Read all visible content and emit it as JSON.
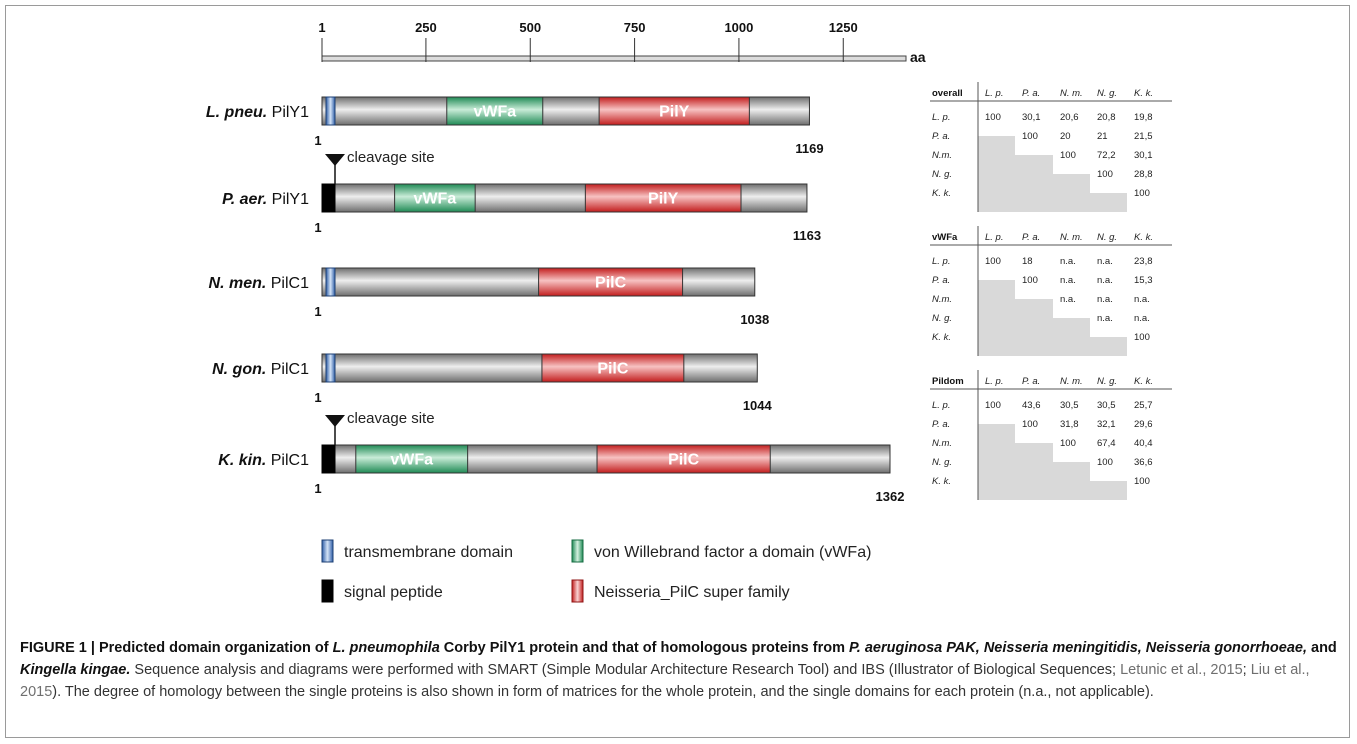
{
  "scale": {
    "ticks": [
      1,
      250,
      500,
      750,
      1000,
      1250
    ],
    "tick_labels": [
      "1",
      "250",
      "500",
      "750",
      "1000",
      "1250"
    ],
    "max": 1362,
    "unit": "aa"
  },
  "proteins": [
    {
      "id": "lpne",
      "species": "L. pneu.",
      "name": "PilY1",
      "length": 1169,
      "end_label": "1169",
      "start_label": "1",
      "n_term": "tm",
      "cleavage": false,
      "domains": [
        {
          "type": "vwfa",
          "label": "vWFa",
          "start": 300,
          "end": 530
        },
        {
          "type": "pilc",
          "label": "PilY",
          "start": 665,
          "end": 1025
        }
      ]
    },
    {
      "id": "paer",
      "species": "P. aer.",
      "name": "PilY1",
      "length": 1163,
      "end_label": "1163",
      "start_label": "1",
      "n_term": "sp",
      "cleavage": true,
      "cleavage_label": "cleavage site",
      "domains": [
        {
          "type": "vwfa",
          "label": "vWFa",
          "start": 175,
          "end": 368
        },
        {
          "type": "pilc",
          "label": "PilY",
          "start": 632,
          "end": 1005
        }
      ]
    },
    {
      "id": "nmen",
      "species": "N. men.",
      "name": "PilC1",
      "length": 1038,
      "end_label": "1038",
      "start_label": "1",
      "n_term": "tm",
      "cleavage": false,
      "domains": [
        {
          "type": "pilc",
          "label": "PilC",
          "start": 520,
          "end": 865
        }
      ]
    },
    {
      "id": "ngon",
      "species": "N. gon.",
      "name": "PilC1",
      "length": 1044,
      "end_label": "1044",
      "start_label": "1",
      "n_term": "tm",
      "cleavage": false,
      "domains": [
        {
          "type": "pilc",
          "label": "PilC",
          "start": 528,
          "end": 868
        }
      ]
    },
    {
      "id": "kkin",
      "species": "K. kin.",
      "name": "PilC1",
      "length": 1362,
      "end_label": "1362",
      "start_label": "1",
      "n_term": "sp",
      "cleavage": true,
      "cleavage_label": "cleavage site",
      "domains": [
        {
          "type": "vwfa",
          "label": "vWFa",
          "start": 82,
          "end": 350
        },
        {
          "type": "pilc",
          "label": "PilC",
          "start": 660,
          "end": 1075
        }
      ]
    }
  ],
  "legend": [
    {
      "type": "tm",
      "label": "transmembrane domain"
    },
    {
      "type": "vwfa",
      "label": "von Willebrand factor a domain (vWFa)"
    },
    {
      "type": "sp",
      "label": "signal peptide"
    },
    {
      "type": "pilc",
      "label": "Neisseria_PilC super family"
    }
  ],
  "matrix_headers": [
    "L. p.",
    "P. a.",
    "N. m.",
    "N. g.",
    "K. k."
  ],
  "row_labels": [
    "L. p.",
    "P. a.",
    "N.m.",
    "N. g.",
    "K. k."
  ],
  "matrices": [
    {
      "title": "overall",
      "rows": [
        [
          "100",
          "30,1",
          "20,6",
          "20,8",
          "19,8"
        ],
        [
          "100",
          "20",
          "21",
          "21,5"
        ],
        [
          "100",
          "72,2",
          "30,1"
        ],
        [
          "100",
          "28,8"
        ],
        [
          "100"
        ]
      ]
    },
    {
      "title": "vWFa",
      "rows": [
        [
          "100",
          "18",
          "n.a.",
          "n.a.",
          "23,8"
        ],
        [
          "100",
          "n.a.",
          "n.a.",
          "15,3"
        ],
        [
          "n.a.",
          "n.a.",
          "n.a."
        ],
        [
          "n.a.",
          "n.a."
        ],
        [
          "100"
        ]
      ]
    },
    {
      "title": "Pildom",
      "rows": [
        [
          "100",
          "43,6",
          "30,5",
          "30,5",
          "25,7"
        ],
        [
          "100",
          "31,8",
          "32,1",
          "29,6"
        ],
        [
          "100",
          "67,4",
          "40,4"
        ],
        [
          "100",
          "36,6"
        ],
        [
          "100"
        ]
      ]
    }
  ],
  "colors": {
    "gray_mid": "#d0d0d0",
    "gray_dark": "#6e6e6e",
    "vwfa_mid": "#9fd7b8",
    "vwfa_dark": "#1f8a55",
    "pilc_mid": "#f29a9a",
    "pilc_dark": "#c21d1d",
    "tm_mid": "#a9c6ea",
    "tm_dark": "#2e5ea8",
    "sp": "#000000",
    "matrix_fill": "#d9d9d9"
  },
  "caption": {
    "lead_1": "FIGURE 1 | Predicted domain organization of ",
    "lead_2": "L. pneumophila",
    "lead_3": " Corby PilY1 protein and that of homologous proteins from ",
    "lead_4": "P. aeruginosa PAK, Neisseria meningitidis, Neisseria gonorrhoeae,",
    "lead_5": " and ",
    "lead_6": "Kingella kingae.",
    "body_1": " Sequence analysis and diagrams were performed with SMART (Simple Modular Architecture Research Tool) and IBS (Illustrator of Biological Sequences; ",
    "ref_1": "Letunic et al., 2015",
    "sep": "; ",
    "ref_2": "Liu et al., 2015",
    "body_2": "). The degree of homology between the single proteins is also shown in form of matrices for the whole protein, and the single domains for each protein (n.a., not applicable)."
  }
}
